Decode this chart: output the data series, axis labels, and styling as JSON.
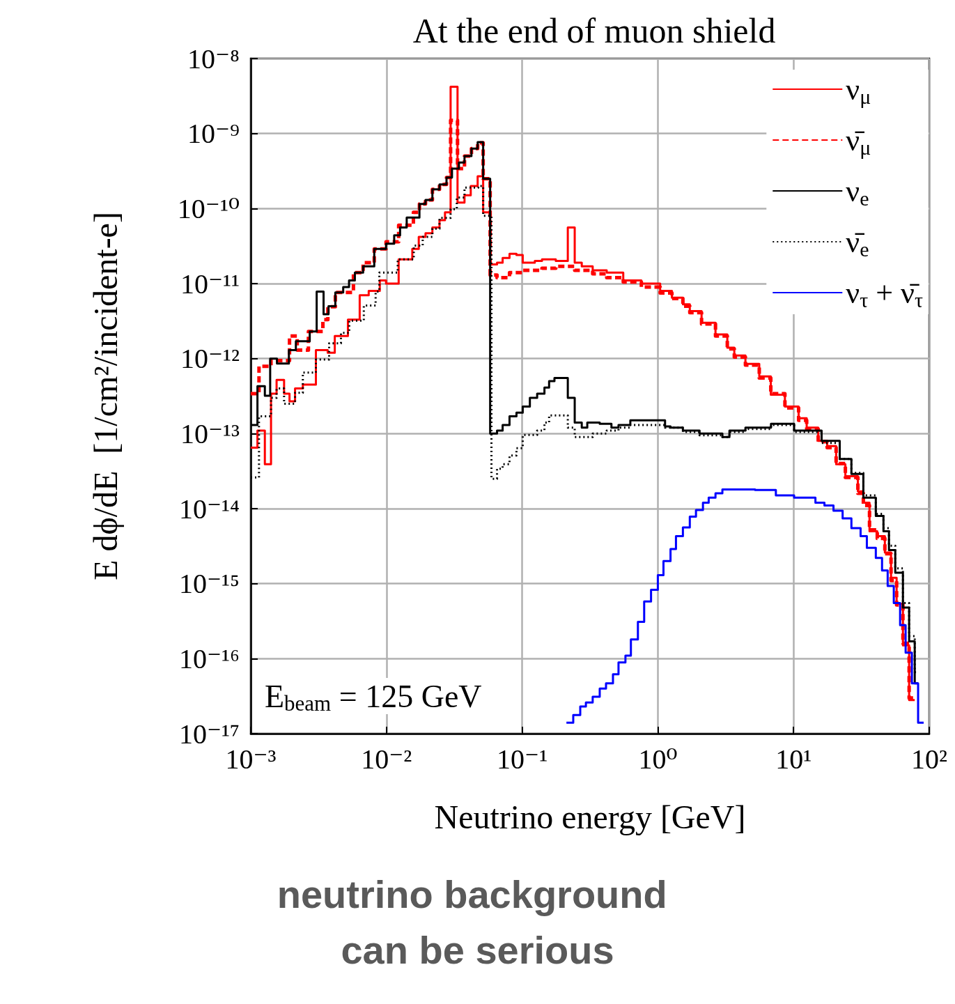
{
  "chart_data": {
    "type": "step",
    "title": "At the end of muon shield",
    "xlabel": "Neutrino energy [GeV]",
    "ylabel": "E dϕ/dE  [1/cm²/incident-e]",
    "log": "xy",
    "grid": true,
    "legend": "top right",
    "xlim": [
      0.001,
      100
    ],
    "ylim": [
      1e-17,
      1e-08
    ],
    "xticks": [
      {
        "value": 0.001,
        "label": "10⁻³"
      },
      {
        "value": 0.01,
        "label": "10⁻²"
      },
      {
        "value": 0.1,
        "label": "10⁻¹"
      },
      {
        "value": 1,
        "label": "10⁰"
      },
      {
        "value": 10,
        "label": "10¹"
      },
      {
        "value": 100,
        "label": "10²"
      }
    ],
    "yticks": [
      {
        "value": 1e-17,
        "label": "10⁻¹⁷"
      },
      {
        "value": 1e-16,
        "label": "10⁻¹⁶"
      },
      {
        "value": 1e-15,
        "label": "10⁻¹⁵"
      },
      {
        "value": 1e-14,
        "label": "10⁻¹⁴"
      },
      {
        "value": 1e-13,
        "label": "10⁻¹³"
      },
      {
        "value": 1e-12,
        "label": "10⁻¹²"
      },
      {
        "value": 1e-11,
        "label": "10⁻¹¹"
      },
      {
        "value": 1e-10,
        "label": "10⁻¹⁰"
      },
      {
        "value": 1e-09,
        "label": "10⁻⁹"
      },
      {
        "value": 1e-08,
        "label": "10⁻⁸"
      }
    ],
    "annotations": [
      "E$_{beam}$ = 125 GeV",
      "neutrino background can be serious"
    ],
    "series": [
      {
        "name": "ν$_{μ}$",
        "color": "#ff0000",
        "line_style": "solid",
        "x": [
          0.001,
          0.00112,
          0.00127,
          0.00141,
          0.00155,
          0.00176,
          0.00193,
          0.00212,
          0.00242,
          0.00302,
          0.00369,
          0.00416,
          0.0052,
          0.00635,
          0.0074,
          0.00893,
          0.00993,
          0.0123,
          0.0155,
          0.0173,
          0.0194,
          0.0218,
          0.0246,
          0.027,
          0.0297,
          0.0334,
          0.0376,
          0.0418,
          0.047,
          0.0516,
          0.0581,
          0.0653,
          0.0718,
          0.0807,
          0.0908,
          0.101,
          0.124,
          0.14,
          0.177,
          0.217,
          0.244,
          0.275,
          0.331,
          0.42,
          0.556,
          0.756,
          1.04,
          1.27,
          1.53,
          1.72,
          2.1,
          2.66,
          3.25,
          3.66,
          4.42,
          5.59,
          6.8,
          8.64,
          10.9,
          12.5,
          15.2,
          17.7,
          20.6,
          24.1,
          29.8,
          32.7,
          36.3,
          41.4,
          47.1,
          52.3,
          57.5,
          64,
          71.1,
          78.2
        ],
        "values": [
          6.5e-14,
          1.1e-13,
          3.9e-14,
          3.4e-13,
          5.2e-13,
          3.4e-13,
          2.7e-13,
          4e-13,
          4.5e-13,
          1.3e-12,
          1.2e-12,
          2e-12,
          3.3e-12,
          7e-12,
          8e-12,
          1.1e-11,
          1e-11,
          2.1e-11,
          2.9e-11,
          4.2e-11,
          4.7e-11,
          5.6e-11,
          7e-11,
          8.9e-11,
          4.2e-09,
          1.2e-10,
          1.5e-10,
          2e-10,
          2.7e-10,
          8.9e-11,
          1.8e-11,
          1.9e-11,
          2.2e-11,
          2.5e-11,
          2.4e-11,
          1.9e-11,
          2e-11,
          2.1e-11,
          2e-11,
          5.6e-11,
          1.9e-11,
          1.7e-11,
          1.5e-11,
          1.4e-11,
          1.1e-11,
          1e-11,
          8e-12,
          6.5e-12,
          5.3e-12,
          4.3e-12,
          3e-12,
          2.1e-12,
          1.4e-12,
          1.1e-12,
          8.5e-13,
          5.8e-13,
          3.3e-13,
          2.3e-13,
          1.6e-13,
          1.2e-13,
          8e-14,
          6.8e-14,
          3.9e-14,
          2.7e-14,
          1.7e-14,
          1.2e-14,
          5e-15,
          4.3e-15,
          2.6e-15,
          1.2e-15,
          5.4e-16,
          1.5e-16,
          2.8e-17,
          2.8e-17
        ]
      },
      {
        "name": "ν̄$_{μ}$",
        "color": "#ff0000",
        "line_style": "dashed",
        "x": [
          0.001,
          0.00115,
          0.00141,
          0.00193,
          0.0022,
          0.00266,
          0.0034,
          0.0037,
          0.0042,
          0.00571,
          0.00673,
          0.00813,
          0.00993,
          0.0123,
          0.0158,
          0.0175,
          0.0194,
          0.0218,
          0.0246,
          0.0277,
          0.0297,
          0.0334,
          0.0376,
          0.0423,
          0.047,
          0.0516,
          0.0581,
          0.0653,
          0.0807,
          0.101,
          0.14,
          0.177,
          0.217,
          0.244,
          0.331,
          0.42,
          0.556,
          0.756,
          1.04,
          1.27,
          1.53,
          1.72,
          2.1,
          2.66,
          3.25,
          3.66,
          4.42,
          5.59,
          6.8,
          8.64,
          10.9,
          12.5,
          15.2,
          17.7,
          20.6,
          24.1,
          29.8,
          32.7,
          36.3,
          41.4,
          47.1,
          52.3,
          57.5,
          64,
          71.1,
          78.2
        ],
        "values": [
          3.4e-13,
          7.9e-13,
          9.4e-13,
          2e-12,
          1.3e-12,
          2.3e-12,
          3.3e-12,
          4.9e-12,
          7.6e-12,
          1.4e-11,
          1.9e-11,
          2.9e-11,
          3.6e-11,
          6e-11,
          8.9e-11,
          1.15e-10,
          1.3e-10,
          1.8e-10,
          2.1e-10,
          2.6e-10,
          1.5e-09,
          3.4e-10,
          5e-10,
          6.3e-10,
          7.5e-10,
          2.5e-10,
          1.3e-11,
          1.2e-11,
          1.4e-11,
          1.5e-11,
          1.6e-11,
          1.7e-11,
          1.7e-11,
          1.5e-11,
          1.35e-11,
          1.2e-11,
          1.05e-11,
          9e-12,
          7.5e-12,
          6.3e-12,
          5e-12,
          4.1e-12,
          2.9e-12,
          2e-12,
          1.35e-12,
          1.05e-12,
          8.2e-13,
          5.5e-13,
          3.4e-13,
          2.2e-13,
          1.5e-13,
          1.15e-13,
          7.8e-14,
          6.5e-14,
          4e-14,
          2.6e-14,
          1.6e-14,
          1.1e-14,
          5.2e-15,
          4e-15,
          2.5e-15,
          1.1e-15,
          5.2e-16,
          1.6e-16,
          3e-17,
          3e-17
        ]
      },
      {
        "name": "ν$_{e}$",
        "color": "#000000",
        "line_style": "solid",
        "x": [
          0.001,
          0.00112,
          0.00127,
          0.00139,
          0.00156,
          0.00191,
          0.00215,
          0.00272,
          0.00306,
          0.00344,
          0.00374,
          0.0042,
          0.0048,
          0.0053,
          0.00585,
          0.00673,
          0.00813,
          0.00993,
          0.0114,
          0.0126,
          0.0141,
          0.0175,
          0.0194,
          0.0218,
          0.0246,
          0.0277,
          0.0304,
          0.0342,
          0.0376,
          0.0423,
          0.047,
          0.0516,
          0.0581,
          0.0653,
          0.0718,
          0.0807,
          0.0908,
          0.101,
          0.114,
          0.129,
          0.146,
          0.158,
          0.173,
          0.217,
          0.244,
          0.275,
          0.302,
          0.373,
          0.455,
          0.513,
          0.627,
          1.13,
          1.24,
          1.53,
          2.03,
          2.99,
          3.37,
          4.42,
          6.82,
          10.1,
          16.1,
          21.9,
          26.7,
          32.7,
          40.4,
          46,
          50.5,
          56.2,
          64,
          71.1,
          78.2,
          82.8
        ],
        "values": [
          1.3e-13,
          4.3e-13,
          3.2e-13,
          1e-12,
          8.6e-13,
          1.3e-12,
          1.7e-12,
          2.3e-12,
          7.8e-12,
          3.9e-12,
          5e-12,
          7.6e-12,
          9e-12,
          1.1e-11,
          1.4e-11,
          1.7e-11,
          2.9e-11,
          3.4e-11,
          4.4e-11,
          5.6e-11,
          7.6e-11,
          1.15e-10,
          1.3e-10,
          1.8e-10,
          2.1e-10,
          2.6e-10,
          3.4e-10,
          4.1e-10,
          5e-10,
          6.3e-10,
          7.7e-10,
          2.5e-10,
          1e-13,
          1.1e-13,
          1.3e-13,
          1.7e-13,
          1.9e-13,
          2.3e-13,
          3e-13,
          3.4e-13,
          4.1e-13,
          5e-13,
          5.5e-13,
          3e-13,
          1.4e-13,
          1.2e-13,
          1.4e-13,
          1.35e-13,
          1.2e-13,
          1.3e-13,
          1.5e-13,
          1.25e-13,
          1.2e-13,
          1.1e-13,
          1e-13,
          9e-14,
          1.1e-13,
          1.2e-13,
          1.35e-13,
          1.1e-13,
          8e-14,
          4.6e-14,
          2.9e-14,
          1.4e-14,
          8e-15,
          5e-15,
          2.8e-15,
          1.4e-15,
          4.8e-16,
          1.7e-16,
          4.7e-17,
          4.7e-17
        ]
      },
      {
        "name": "ν̄$_{e}$",
        "color": "#000000",
        "line_style": "dotted",
        "x": [
          0.001,
          0.00115,
          0.00141,
          0.00155,
          0.00176,
          0.00212,
          0.00242,
          0.00302,
          0.00378,
          0.00462,
          0.00532,
          0.00681,
          0.00832,
          0.00886,
          0.0121,
          0.0159,
          0.0185,
          0.0218,
          0.0246,
          0.0297,
          0.033,
          0.0376,
          0.0475,
          0.0516,
          0.0594,
          0.0653,
          0.0718,
          0.0807,
          0.0908,
          0.101,
          0.129,
          0.146,
          0.158,
          0.217,
          0.244,
          0.331,
          0.42,
          0.513,
          0.627,
          1.13,
          1.53,
          2.03,
          2.99,
          3.37,
          4.42,
          6.82,
          10.1,
          16.1,
          21.9,
          26.7,
          32.7,
          40.4,
          46,
          50.5,
          56.2,
          64,
          71.1,
          78.2,
          82.8
        ],
        "values": [
          2.6e-14,
          1.7e-13,
          3e-13,
          4e-13,
          2.5e-13,
          3.5e-13,
          6.5e-13,
          9.7e-13,
          1.6e-12,
          2.2e-12,
          3.2e-12,
          5.1e-12,
          7.8e-12,
          1.4e-11,
          2.1e-11,
          3.2e-11,
          4.2e-11,
          5.4e-11,
          7.5e-11,
          9.8e-11,
          1.4e-10,
          1.9e-10,
          2e-10,
          8e-11,
          2.5e-14,
          3.4e-14,
          3.9e-14,
          5.1e-14,
          6.4e-14,
          9.6e-14,
          1.1e-13,
          1.4e-13,
          1.75e-13,
          1.2e-13,
          9e-14,
          1e-13,
          1.1e-13,
          1.2e-13,
          1.3e-13,
          1.2e-13,
          1.05e-13,
          9.5e-14,
          9e-14,
          1.05e-13,
          1.15e-13,
          1.3e-13,
          1.05e-13,
          7.5e-14,
          4.6e-14,
          3e-14,
          1.5e-14,
          8.5e-15,
          5.5e-15,
          3.2e-15,
          1.6e-15,
          5.5e-16,
          2e-16,
          6.6e-17,
          6.6e-17
        ]
      },
      {
        "name": "ν$_{τ}$ + ν̄$_{τ}$",
        "color": "#0000ff",
        "line_style": "solid",
        "x": [
          0.212,
          0.238,
          0.268,
          0.295,
          0.331,
          0.373,
          0.415,
          0.467,
          0.513,
          0.577,
          0.633,
          0.713,
          0.793,
          0.891,
          1.0,
          1.1,
          1.24,
          1.36,
          1.53,
          1.72,
          1.91,
          2.15,
          2.37,
          2.66,
          2.99,
          3.93,
          5.21,
          7.41,
          10.1,
          14.5,
          16.9,
          19.7,
          23,
          26.7,
          31.2,
          34.7,
          40.4,
          44.9,
          49.4,
          54.8,
          61,
          67,
          74.5,
          82.8,
          91
        ],
        "values": [
          1.4e-17,
          1.77e-17,
          2.3e-17,
          2.6e-17,
          3.1e-17,
          4e-17,
          4.7e-17,
          6.2e-17,
          8.9e-17,
          1.1e-16,
          1.8e-16,
          3.1e-16,
          5.8e-16,
          8.3e-16,
          1.3e-15,
          2e-15,
          2.9e-15,
          4.3e-15,
          5.6e-15,
          7.8e-15,
          9.6e-15,
          1.2e-14,
          1.4e-14,
          1.6e-14,
          1.8e-14,
          1.8e-14,
          1.77e-14,
          1.5e-14,
          1.4e-14,
          1.2e-14,
          1.1e-14,
          9.4e-15,
          7.4e-15,
          5.5e-15,
          4.3e-15,
          3e-15,
          2.2e-15,
          1.5e-15,
          9.3e-16,
          5.5e-16,
          2.8e-16,
          1.2e-16,
          4.7e-17,
          1.4e-17,
          1.4e-17
        ]
      }
    ]
  }
}
